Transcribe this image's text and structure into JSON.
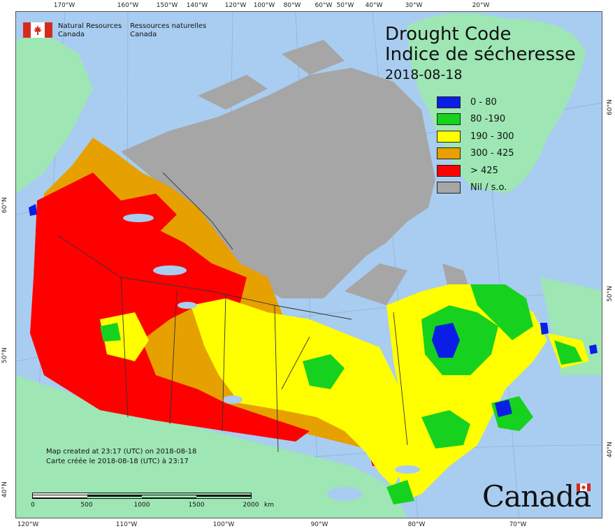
{
  "title": {
    "line1": "Drought Code",
    "line2": "Indice de sécheresse",
    "date": "2018-08-18"
  },
  "agency": {
    "english": [
      "Natural Resources",
      "Canada"
    ],
    "french": [
      "Ressources naturelles",
      "Canada"
    ]
  },
  "legend": [
    {
      "label": "0 - 80",
      "color": "#0a1ee6"
    },
    {
      "label": "80 -190",
      "color": "#16d21e"
    },
    {
      "label": "190 - 300",
      "color": "#ffff00"
    },
    {
      "label": "300 - 425",
      "color": "#e6a000"
    },
    {
      "label": "> 425",
      "color": "#ff0000"
    },
    {
      "label": "Nil / s.o.",
      "color": "#a6a6a6"
    }
  ],
  "colors": {
    "ocean": "#a9cdf0",
    "land_outside": "#9ee6b4",
    "no_data": "#a6a6a6",
    "flag_red": "#d52b1e"
  },
  "credit": {
    "english": "Map created at 23:17 (UTC) on 2018-08-18",
    "french": "Carte créée le 2018-08-18 (UTC) à 23:17"
  },
  "scale": {
    "labels": [
      "0",
      "500",
      "1000",
      "1500",
      "2000"
    ],
    "unit": "km"
  },
  "wordmark": "Canada",
  "graticule": {
    "top_longitudes": [
      "170°W",
      "160°W",
      "150°W",
      "140°W",
      "120°W",
      "100°W",
      "80°W",
      "60°W",
      "50°W",
      "40°W",
      "30°W",
      "20°W"
    ],
    "bottom_longitudes": [
      "120°W",
      "110°W",
      "100°W",
      "90°W",
      "80°W",
      "70°W"
    ],
    "left_latitudes": [
      "60°N",
      "50°N",
      "40°N"
    ],
    "right_latitudes": [
      "60°N",
      "50°N",
      "40°N"
    ]
  }
}
